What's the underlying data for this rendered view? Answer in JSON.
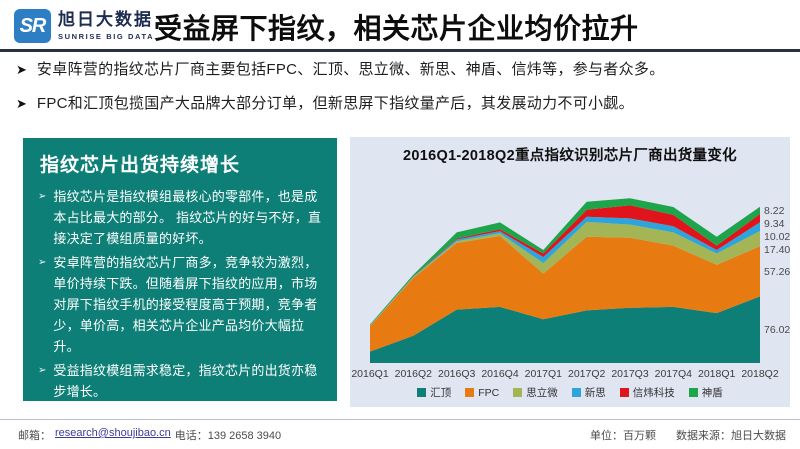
{
  "header": {
    "logo_monogram": "SR",
    "brand_cn": "旭日大数据",
    "brand_en": "SUNRISE BIG DATA",
    "title": "受益屏下指纹，相关芯片企业均价拉升"
  },
  "bullet_marker": "➤",
  "panel_marker": "➢",
  "bullets": [
    "安卓阵营的指纹芯片厂商主要包括FPC、汇顶、思立微、新思、神盾、信炜等，参与者众多。",
    "FPC和汇顶包揽国产大品牌大部分订单，但新思屏下指纹量产后，其发展动力不可小觑。"
  ],
  "panel": {
    "title": "指纹芯片出货持续增长",
    "bullets": [
      "指纹芯片是指纹模组最核心的零部件，也是成本占比最大的部分。 指纹芯片的好与不好，直接决定了模组质量的好坏。",
      "安卓阵营的指纹芯片厂商多，竞争较为激烈，单价持续下跌。但随着屏下指纹的应用，市场对屏下指纹手机的接受程度高于预期，竞争者少，单价高，相关芯片企业产品均价大幅拉升。",
      "受益指纹模组需求稳定，指纹芯片的出货亦稳步增长。"
    ],
    "bg_color": "#0E7F77"
  },
  "chart_data": {
    "type": "area",
    "stacked": true,
    "title": "2016Q1-2018Q2重点指纹识别芯片厂商出货量变化",
    "unit": "百万颗",
    "grid": false,
    "legend_position": "bottom",
    "plot_bg": "#DFE5F1",
    "ylim": [
      0,
      210
    ],
    "categories": [
      "2016Q1",
      "2016Q2",
      "2016Q3",
      "2016Q4",
      "2017Q1",
      "2017Q2",
      "2017Q3",
      "2017Q4",
      "2018Q1",
      "2018Q2"
    ],
    "series": [
      {
        "name": "汇顶",
        "color": "#0D7F76",
        "values": [
          13,
          31,
          61,
          64,
          50,
          60,
          63,
          64,
          57,
          76.02
        ]
      },
      {
        "name": "FPC",
        "color": "#E87A12",
        "values": [
          29,
          66,
          76,
          81,
          52,
          84,
          80,
          70,
          55,
          57.26
        ]
      },
      {
        "name": "思立微",
        "color": "#A4B556",
        "values": [
          0.5,
          1,
          2,
          3,
          12,
          17,
          15,
          15,
          13,
          17.4
        ]
      },
      {
        "name": "新思",
        "color": "#2EA4DC",
        "values": [
          0.3,
          0.5,
          2,
          2.5,
          7,
          6,
          7,
          7,
          4,
          10.02
        ]
      },
      {
        "name": "信炜科技",
        "color": "#E0141B",
        "values": [
          0.1,
          0.2,
          1,
          2,
          4,
          8,
          15,
          13,
          5,
          9.34
        ]
      },
      {
        "name": "神盾",
        "color": "#1EA44A",
        "values": [
          1,
          2,
          7,
          8,
          4,
          9,
          8,
          9,
          10,
          8.22
        ]
      }
    ],
    "last_point_labels": [
      "76.02",
      "57.26",
      "17.40",
      "10.02",
      "9.34",
      "8.22"
    ],
    "note": "values before 2018Q2 estimated from area heights; 2018Q2 values labeled on chart"
  },
  "footer": {
    "email_label": "邮箱：",
    "email": "research@shoujibao.cn",
    "phone": "电话：139 2658 3940",
    "unit": "单位：百万颗",
    "source": "数据来源：旭日大数据"
  }
}
